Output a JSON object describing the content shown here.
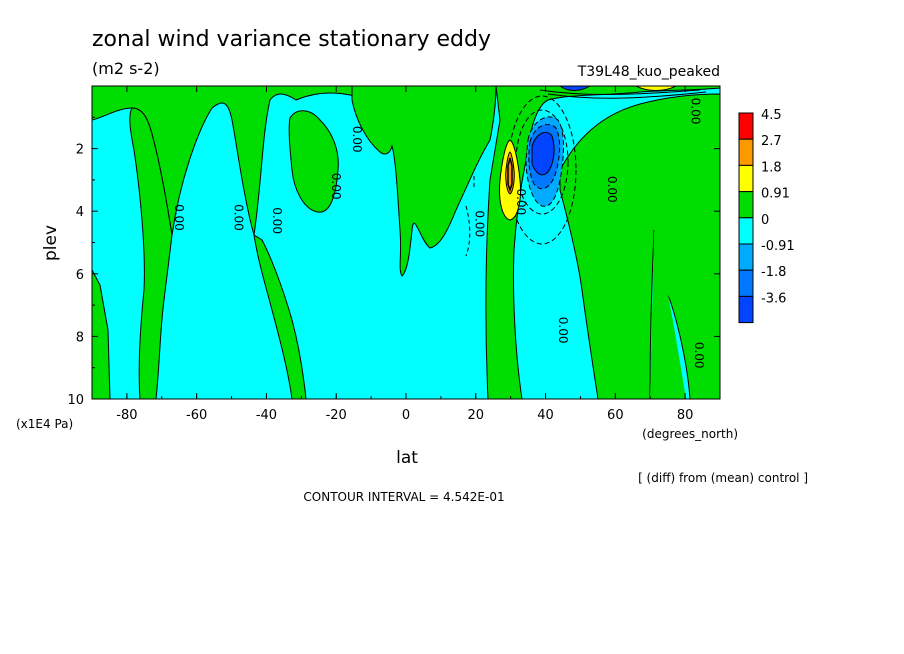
{
  "header": {
    "title": "zonal wind variance stationary eddy",
    "units": "(m2 s-2)",
    "run_name": "T39L48_kuo_peaked"
  },
  "footer": {
    "diff_note": "[ (diff) from (mean) control ]",
    "contour_interval": "CONTOUR INTERVAL = 4.542E-01"
  },
  "chart_data": {
    "type": "heatmap",
    "title": "zonal wind variance stationary eddy",
    "units": "(m2 s-2)",
    "xlabel": "lat",
    "x_unit": "(degrees_north)",
    "ylabel": "plev",
    "y_unit": "(x1E4 Pa)",
    "xlim": [
      -90,
      90
    ],
    "ylim": [
      10,
      0
    ],
    "x_ticks": [
      "-80",
      "-60",
      "-40",
      "-20",
      "0",
      "20",
      "40",
      "60",
      "80"
    ],
    "y_ticks": [
      "2",
      "4",
      "6",
      "8",
      "10"
    ],
    "contour_interval": 0.4542,
    "contour_labels": [
      "0.00",
      "0.00",
      "0.00",
      "0.00",
      "0.00",
      "0.00",
      "0.00",
      "0.00",
      "0.00",
      "0.00",
      "0.00"
    ],
    "colorbar": {
      "levels": [
        "4.5",
        "2.7",
        "1.8",
        "0.91",
        "0",
        "-0.91",
        "-1.8",
        "-3.6"
      ],
      "colors": [
        "#ff0000",
        "#ff9900",
        "#ffff00",
        "#00dd00",
        "#00ffff",
        "#00aaff",
        "#0077ff",
        "#0044ff"
      ]
    },
    "features": [
      {
        "name": "positive maximum",
        "lat": 28,
        "plev": 3.0,
        "value": 2.2
      },
      {
        "name": "negative minimum",
        "lat": 38,
        "plev": 2.2,
        "value": -2.0
      }
    ]
  }
}
